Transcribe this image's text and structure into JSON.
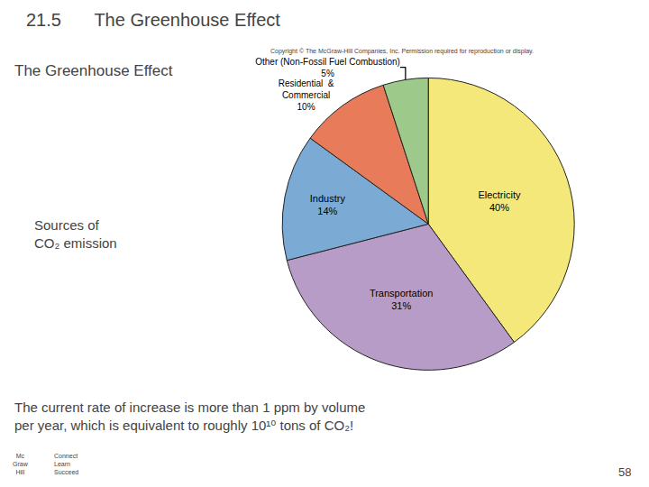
{
  "chart_data": {
    "type": "pie",
    "title": "The Greenhouse Effect",
    "subtitle": "The Greenhouse Effect",
    "categories": [
      "Electricity",
      "Transportation",
      "Industry",
      "Residential  &\nCommercial",
      "Other (Non-Fossil Fuel Combustion)"
    ],
    "values": [
      40,
      31,
      14,
      10,
      5
    ],
    "value_labels": [
      "40%",
      "31%",
      "14%",
      "10%",
      "5%"
    ],
    "colors": [
      "#F5E87A",
      "#B89CC8",
      "#7BAAD4",
      "#E87B5A",
      "#9DC98A"
    ],
    "data_labels": true,
    "annotations": [
      "21.5",
      "Sources of\nCO₂ emission",
      "Copyright © The McGraw-Hill Companies, Inc. Permission required for reproduction or display.",
      "The current rate of increase is more than 1 ppm by volume\nper year, which is equivalent to roughly 10¹⁰ tons of CO₂!",
      "58",
      "Mc\nGraw\nHill",
      "Connect\nLearn\nSucceed"
    ]
  }
}
